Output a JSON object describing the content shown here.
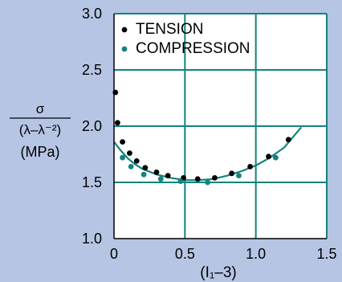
{
  "chart_data": {
    "type": "scatter",
    "y_axis_label": {
      "numerator": "σ",
      "denominator": "(λ–λ⁻²)",
      "unit": "(MPa)"
    },
    "xlabel": "(I₁–3)",
    "xlim": [
      0,
      1.5
    ],
    "ylim": [
      1.0,
      3.0
    ],
    "x_ticks": [
      "0",
      "0.5",
      "1.0",
      "1.5"
    ],
    "y_ticks": [
      "1.0",
      "1.5",
      "2.0",
      "2.5",
      "3.0"
    ],
    "x_tick_values": [
      0,
      0.5,
      1.0,
      1.5
    ],
    "y_tick_values": [
      1.0,
      1.5,
      2.0,
      2.5,
      3.0
    ],
    "grid": true,
    "legend_position": "top-left",
    "series": [
      {
        "name": "TENSION",
        "color": "#000000",
        "points": [
          [
            0.01,
            2.3
          ],
          [
            0.025,
            2.03
          ],
          [
            0.06,
            1.86
          ],
          [
            0.11,
            1.76
          ],
          [
            0.16,
            1.69
          ],
          [
            0.22,
            1.63
          ],
          [
            0.3,
            1.59
          ],
          [
            0.38,
            1.56
          ],
          [
            0.49,
            1.54
          ],
          [
            0.59,
            1.53
          ],
          [
            0.71,
            1.54
          ],
          [
            0.83,
            1.58
          ],
          [
            0.96,
            1.64
          ],
          [
            1.09,
            1.73
          ],
          [
            1.23,
            1.88
          ]
        ]
      },
      {
        "name": "COMPRESSION",
        "color": "#13837e",
        "points": [
          [
            0.06,
            1.72
          ],
          [
            0.12,
            1.64
          ],
          [
            0.21,
            1.57
          ],
          [
            0.33,
            1.53
          ],
          [
            0.47,
            1.51
          ],
          [
            0.66,
            1.5
          ],
          [
            0.88,
            1.56
          ],
          [
            1.14,
            1.72
          ]
        ]
      }
    ],
    "fit_curve": {
      "color": "#13837e",
      "points": [
        [
          0.0,
          1.86
        ],
        [
          0.05,
          1.78
        ],
        [
          0.1,
          1.71
        ],
        [
          0.15,
          1.66
        ],
        [
          0.2,
          1.62
        ],
        [
          0.3,
          1.57
        ],
        [
          0.4,
          1.54
        ],
        [
          0.5,
          1.52
        ],
        [
          0.6,
          1.52
        ],
        [
          0.7,
          1.53
        ],
        [
          0.8,
          1.56
        ],
        [
          0.9,
          1.6
        ],
        [
          1.0,
          1.65
        ],
        [
          1.1,
          1.72
        ],
        [
          1.2,
          1.81
        ],
        [
          1.32,
          1.99
        ]
      ]
    }
  },
  "colors": {
    "background": "#b7c5e4",
    "plot_area": "#ffffff",
    "grid": "#13837e",
    "axis": "#000000",
    "text": "#000000"
  }
}
